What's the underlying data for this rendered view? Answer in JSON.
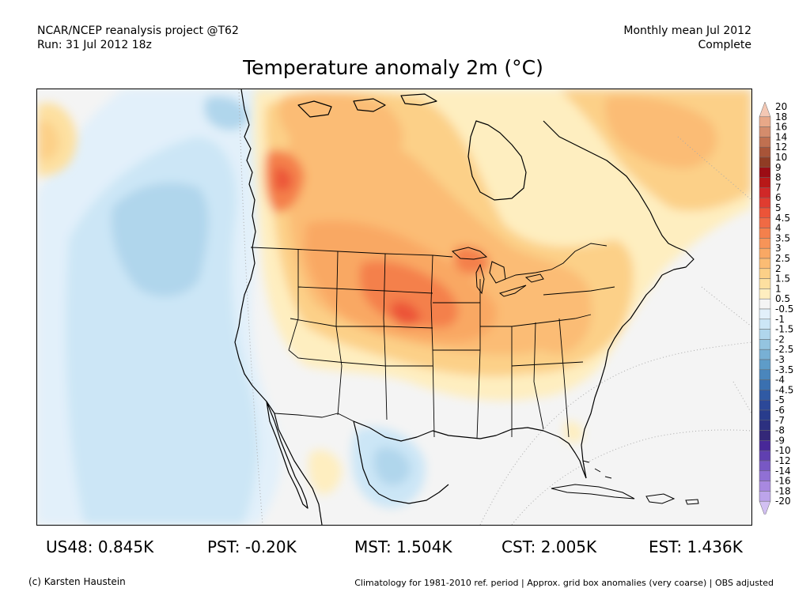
{
  "header": {
    "source_line": "NCAR/NCEP reanalysis project @T62",
    "run_line": "Run: 31 Jul 2012 18z",
    "period_line": "Monthly mean Jul 2012",
    "status_line": "Complete"
  },
  "title": "Temperature anomaly 2m (°C)",
  "colorbar": {
    "levels": [
      {
        "label": "20",
        "color": "#f4c8b4"
      },
      {
        "label": "18",
        "color": "#e8a888"
      },
      {
        "label": "16",
        "color": "#d48c6c"
      },
      {
        "label": "14",
        "color": "#c07050"
      },
      {
        "label": "12",
        "color": "#a85438"
      },
      {
        "label": "10",
        "color": "#903c24"
      },
      {
        "label": "9",
        "color": "#9c0c14"
      },
      {
        "label": "8",
        "color": "#b81818"
      },
      {
        "label": "7",
        "color": "#d02828"
      },
      {
        "label": "6",
        "color": "#e03c30"
      },
      {
        "label": "5",
        "color": "#ec5438"
      },
      {
        "label": "4.5",
        "color": "#f06a44"
      },
      {
        "label": "4",
        "color": "#f4804c"
      },
      {
        "label": "3.5",
        "color": "#f79458"
      },
      {
        "label": "3",
        "color": "#f9a864"
      },
      {
        "label": "2.5",
        "color": "#fbbc74"
      },
      {
        "label": "2",
        "color": "#fcd088"
      },
      {
        "label": "1.5",
        "color": "#fde0a0"
      },
      {
        "label": "1",
        "color": "#feeec0"
      },
      {
        "label": "0.5",
        "color": "#f4f4f4"
      },
      {
        "label": "-0.5",
        "color": "#e2f0fa"
      },
      {
        "label": "-1",
        "color": "#cce6f6"
      },
      {
        "label": "-1.5",
        "color": "#b0d6ec"
      },
      {
        "label": "-2",
        "color": "#94c4e0"
      },
      {
        "label": "-2.5",
        "color": "#78b0d4"
      },
      {
        "label": "-3",
        "color": "#5e9cc8"
      },
      {
        "label": "-3.5",
        "color": "#4a86bc"
      },
      {
        "label": "-4",
        "color": "#3a70b0"
      },
      {
        "label": "-4.5",
        "color": "#305aa4"
      },
      {
        "label": "-5",
        "color": "#2c4898"
      },
      {
        "label": "-6",
        "color": "#283c8c"
      },
      {
        "label": "-7",
        "color": "#2c3080"
      },
      {
        "label": "-8",
        "color": "#342878"
      },
      {
        "label": "-9",
        "color": "#482898"
      },
      {
        "label": "-10",
        "color": "#6040b0"
      },
      {
        "label": "-12",
        "color": "#7858c4"
      },
      {
        "label": "-14",
        "color": "#9070d4"
      },
      {
        "label": "-16",
        "color": "#a888e0"
      },
      {
        "label": "-18",
        "color": "#bca4ea"
      },
      {
        "label": "-20",
        "color": "#d2c0f2"
      }
    ]
  },
  "stats": [
    {
      "label": "US48: 0.845K"
    },
    {
      "label": "PST: -0.20K"
    },
    {
      "label": "MST: 1.504K"
    },
    {
      "label": "CST: 2.005K"
    },
    {
      "label": "EST: 1.436K"
    }
  ],
  "footer": {
    "credit": "(c) Karsten Haustein",
    "note": "Climatology for 1981-2010 ref. period | Approx. grid box anomalies (very coarse) | OBS adjusted"
  },
  "map": {
    "region": "North America",
    "background_color": "#f4f4f4",
    "coastline_color": "#000000",
    "graticule_color": "#aaaaaa"
  }
}
